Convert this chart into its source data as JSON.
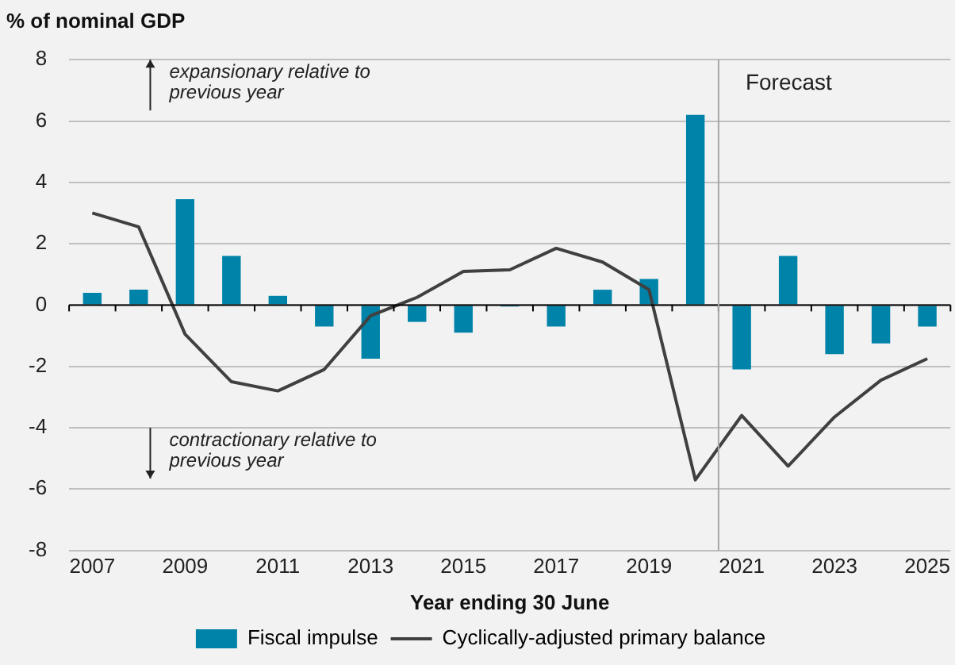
{
  "chart_data": {
    "type": "bar",
    "title": "% of nominal GDP",
    "xlabel": "Year ending 30 June",
    "x": [
      2007,
      2008,
      2009,
      2010,
      2011,
      2012,
      2013,
      2014,
      2015,
      2016,
      2017,
      2018,
      2019,
      2020,
      2021,
      2022,
      2023,
      2024,
      2025
    ],
    "series": [
      {
        "name": "Fiscal impulse",
        "color": "#0083a9",
        "values": [
          0.4,
          0.5,
          3.45,
          1.6,
          0.3,
          -0.7,
          -1.75,
          -0.55,
          -0.9,
          -0.05,
          -0.7,
          0.5,
          0.85,
          6.2,
          -2.1,
          1.6,
          -1.6,
          -1.25,
          -0.7
        ]
      },
      {
        "name": "Cyclically-adjusted primary balance",
        "type": "line",
        "color": "#404040",
        "values": [
          3.0,
          2.55,
          -0.95,
          -2.5,
          -2.8,
          -2.1,
          -0.35,
          0.25,
          1.1,
          1.15,
          1.85,
          1.4,
          0.5,
          -5.7,
          -3.6,
          -5.25,
          -3.65,
          -2.45,
          -1.75
        ]
      }
    ],
    "xlim": [
      2006.5,
      2025.5
    ],
    "xticks": [
      2007,
      2009,
      2011,
      2013,
      2015,
      2017,
      2019,
      2021,
      2023,
      2025
    ],
    "ylim": [
      -8,
      8
    ],
    "yticks": [
      -8,
      -6,
      -4,
      -2,
      0,
      2,
      4,
      6,
      8
    ],
    "ref_lines": [
      {
        "axis": "x",
        "value": 2020.5,
        "label": "Forecast",
        "color": "#a6a6a6"
      }
    ],
    "annotations": [
      "expansionary relative to previous year",
      "contractionary relative to previous year"
    ],
    "grid": "y",
    "legend": "bottom",
    "marker": "none",
    "line_style": "solid"
  }
}
